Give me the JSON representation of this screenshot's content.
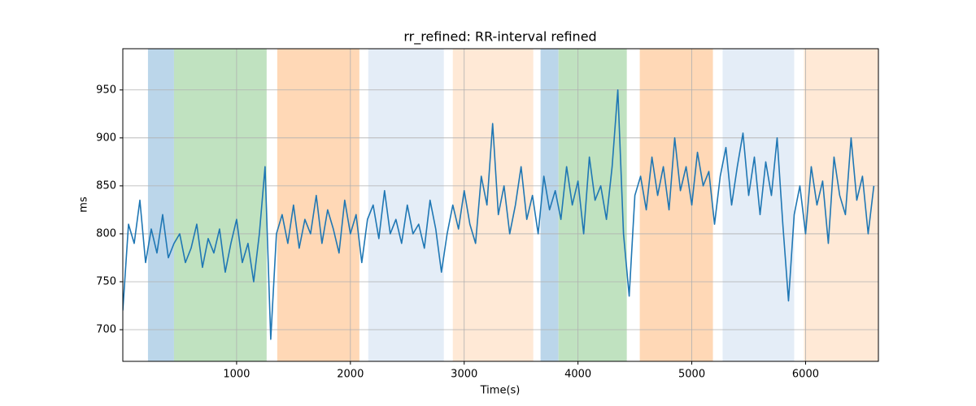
{
  "chart_data": {
    "type": "line",
    "title": "rr_refined: RR-interval refined",
    "xlabel": "Time(s)",
    "ylabel": "ms",
    "x": [
      0,
      50,
      100,
      150,
      200,
      250,
      300,
      350,
      400,
      450,
      500,
      550,
      600,
      650,
      700,
      750,
      800,
      850,
      900,
      950,
      1000,
      1050,
      1100,
      1150,
      1200,
      1250,
      1300,
      1350,
      1400,
      1450,
      1500,
      1550,
      1600,
      1650,
      1700,
      1750,
      1800,
      1850,
      1900,
      1950,
      2000,
      2050,
      2100,
      2150,
      2200,
      2250,
      2300,
      2350,
      2400,
      2450,
      2500,
      2550,
      2600,
      2650,
      2700,
      2750,
      2800,
      2850,
      2900,
      2950,
      3000,
      3050,
      3100,
      3150,
      3200,
      3250,
      3300,
      3350,
      3400,
      3450,
      3500,
      3550,
      3600,
      3650,
      3700,
      3750,
      3800,
      3850,
      3900,
      3950,
      4000,
      4050,
      4100,
      4150,
      4200,
      4250,
      4300,
      4350,
      4400,
      4450,
      4500,
      4550,
      4600,
      4650,
      4700,
      4750,
      4800,
      4850,
      4900,
      4950,
      5000,
      5050,
      5100,
      5150,
      5200,
      5250,
      5300,
      5350,
      5400,
      5450,
      5500,
      5550,
      5600,
      5650,
      5700,
      5750,
      5800,
      5850,
      5900,
      5950,
      6000,
      6050,
      6100,
      6150,
      6200,
      6250,
      6300,
      6350,
      6400,
      6450,
      6500,
      6550,
      6600
    ],
    "values": [
      720,
      810,
      790,
      835,
      770,
      805,
      780,
      820,
      775,
      790,
      800,
      770,
      785,
      810,
      765,
      795,
      780,
      805,
      760,
      790,
      815,
      770,
      790,
      750,
      800,
      870,
      690,
      800,
      820,
      790,
      830,
      785,
      815,
      800,
      840,
      790,
      825,
      805,
      780,
      835,
      800,
      820,
      770,
      815,
      830,
      795,
      845,
      800,
      815,
      790,
      830,
      800,
      810,
      785,
      835,
      805,
      760,
      800,
      830,
      805,
      845,
      810,
      790,
      860,
      830,
      915,
      820,
      850,
      800,
      830,
      870,
      815,
      840,
      800,
      860,
      825,
      845,
      815,
      870,
      830,
      855,
      800,
      880,
      835,
      850,
      815,
      870,
      950,
      800,
      735,
      840,
      860,
      825,
      880,
      840,
      870,
      825,
      900,
      845,
      870,
      830,
      885,
      850,
      865,
      810,
      860,
      890,
      830,
      870,
      905,
      840,
      880,
      820,
      875,
      840,
      900,
      810,
      730,
      820,
      850,
      800,
      870,
      830,
      855,
      790,
      880,
      840,
      820,
      900,
      835,
      860,
      800,
      850
    ],
    "color": "#1f77b4",
    "spans": [
      {
        "x0": 221,
        "x1": 450,
        "color": "#bbd6ea"
      },
      {
        "x0": 450,
        "x1": 1264,
        "color": "#c0e2c0"
      },
      {
        "x0": 1357,
        "x1": 2079,
        "color": "#ffd8b6"
      },
      {
        "x0": 2157,
        "x1": 2821,
        "color": "#e4edf7"
      },
      {
        "x0": 2900,
        "x1": 3607,
        "color": "#ffe9d6"
      },
      {
        "x0": 3671,
        "x1": 3829,
        "color": "#bbd6ea"
      },
      {
        "x0": 3829,
        "x1": 4429,
        "color": "#c0e2c0"
      },
      {
        "x0": 4543,
        "x1": 5186,
        "color": "#ffd8b6"
      },
      {
        "x0": 5271,
        "x1": 5900,
        "color": "#e4edf7"
      },
      {
        "x0": 5986,
        "x1": 6640,
        "color": "#ffe9d6"
      }
    ],
    "xlim": [
      0,
      6640
    ],
    "ylim": [
      667,
      993
    ],
    "xticks": [
      1000,
      2000,
      3000,
      4000,
      5000,
      6000
    ],
    "yticks": [
      700,
      750,
      800,
      850,
      900,
      950
    ],
    "grid": true
  }
}
